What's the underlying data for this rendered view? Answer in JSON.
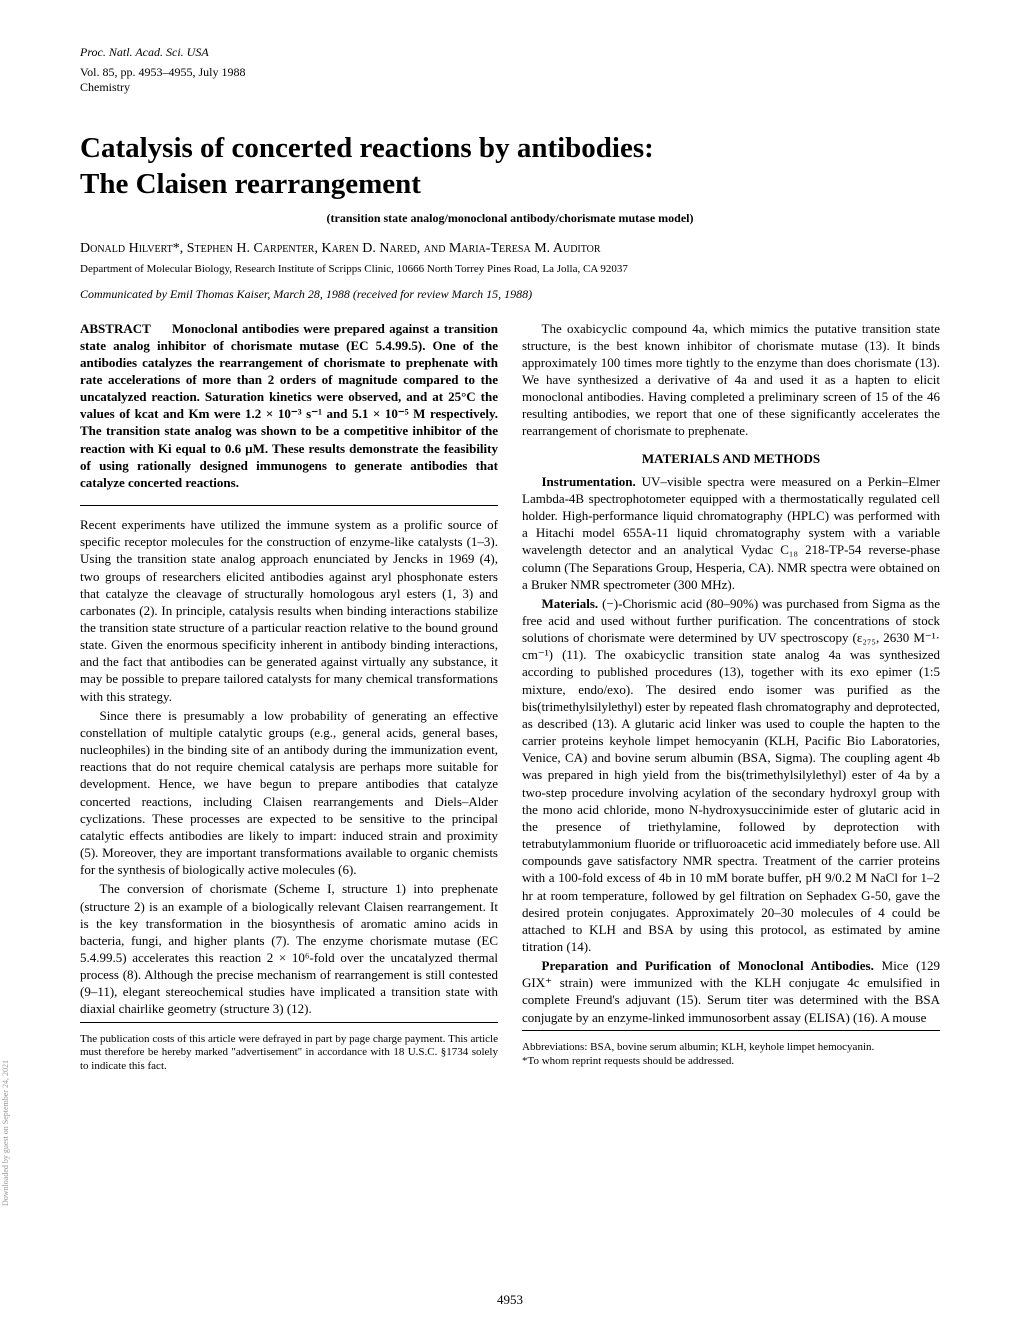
{
  "header": {
    "journal_line": "Proc. Natl. Acad. Sci. USA",
    "volume_line": "Vol. 85, pp. 4953–4955, July 1988",
    "category": "Chemistry"
  },
  "article": {
    "title_line1": "Catalysis of concerted reactions by antibodies:",
    "title_line2": "The Claisen rearrangement",
    "subtitle": "(transition state analog/monoclonal antibody/chorismate mutase model)",
    "authors": "Donald Hilvert*, Stephen H. Carpenter, Karen D. Nared, and Maria-Teresa M. Auditor",
    "affiliation": "Department of Molecular Biology, Research Institute of Scripps Clinic, 10666 North Torrey Pines Road, La Jolla, CA 92037",
    "communicated": "Communicated by Emil Thomas Kaiser, March 28, 1988 (received for review March 15, 1988)"
  },
  "abstract": {
    "label": "ABSTRACT",
    "text": "Monoclonal antibodies were prepared against a transition state analog inhibitor of chorismate mutase (EC 5.4.99.5). One of the antibodies catalyzes the rearrangement of chorismate to prephenate with rate accelerations of more than 2 orders of magnitude compared to the uncatalyzed reaction. Saturation kinetics were observed, and at 25°C the values of kcat and Km were 1.2 × 10⁻³ s⁻¹ and 5.1 × 10⁻⁵ M respectively. The transition state analog was shown to be a competitive inhibitor of the reaction with Ki equal to 0.6 µM. These results demonstrate the feasibility of using rationally designed immunogens to generate antibodies that catalyze concerted reactions."
  },
  "body": {
    "p1": "Recent experiments have utilized the immune system as a prolific source of specific receptor molecules for the construction of enzyme-like catalysts (1–3). Using the transition state analog approach enunciated by Jencks in 1969 (4), two groups of researchers elicited antibodies against aryl phosphonate esters that catalyze the cleavage of structurally homologous aryl esters (1, 3) and carbonates (2). In principle, catalysis results when binding interactions stabilize the transition state structure of a particular reaction relative to the bound ground state. Given the enormous specificity inherent in antibody binding interactions, and the fact that antibodies can be generated against virtually any substance, it may be possible to prepare tailored catalysts for many chemical transformations with this strategy.",
    "p2": "Since there is presumably a low probability of generating an effective constellation of multiple catalytic groups (e.g., general acids, general bases, nucleophiles) in the binding site of an antibody during the immunization event, reactions that do not require chemical catalysis are perhaps more suitable for development. Hence, we have begun to prepare antibodies that catalyze concerted reactions, including Claisen rearrangements and Diels–Alder cyclizations. These processes are expected to be sensitive to the principal catalytic effects antibodies are likely to impart: induced strain and proximity (5). Moreover, they are important transformations available to organic chemists for the synthesis of biologically active molecules (6).",
    "p3": "The conversion of chorismate (Scheme I, structure 1) into prephenate (structure 2) is an example of a biologically relevant Claisen rearrangement. It is the key transformation in the biosynthesis of aromatic amino acids in bacteria, fungi, and higher plants (7). The enzyme chorismate mutase (EC 5.4.99.5) accelerates this reaction 2 × 10⁶-fold over the uncatalyzed thermal process (8). Although the precise mechanism of rearrangement is still contested (9–11), elegant stereochemical studies have implicated a transition state with diaxial chairlike geometry (structure 3) (12).",
    "p4": "The oxabicyclic compound 4a, which mimics the putative transition state structure, is the best known inhibitor of chorismate mutase (13). It binds approximately 100 times more tightly to the enzyme than does chorismate (13). We have synthesized a derivative of 4a and used it as a hapten to elicit monoclonal antibodies. Having completed a preliminary screen of 15 of the 46 resulting antibodies, we report that one of these significantly accelerates the rearrangement of chorismate to prephenate."
  },
  "materials": {
    "heading": "MATERIALS AND METHODS",
    "instrumentation_label": "Instrumentation.",
    "instrumentation": " UV–visible spectra were measured on a Perkin–Elmer Lambda-4B spectrophotometer equipped with a thermostatically regulated cell holder. High-performance liquid chromatography (HPLC) was performed with a Hitachi model 655A-11 liquid chromatography system with a variable wavelength detector and an analytical Vydac C₁₈ 218-TP-54 reverse-phase column (The Separations Group, Hesperia, CA). NMR spectra were obtained on a Bruker NMR spectrometer (300 MHz).",
    "materials_label": "Materials.",
    "materials_text": " (−)-Chorismic acid (80–90%) was purchased from Sigma as the free acid and used without further purification. The concentrations of stock solutions of chorismate were determined by UV spectroscopy (ε₂₇₅, 2630 M⁻¹· cm⁻¹) (11). The oxabicyclic transition state analog 4a was synthesized according to published procedures (13), together with its exo epimer (1:5 mixture, endo/exo). The desired endo isomer was purified as the bis(trimethylsilylethyl) ester by repeated flash chromatography and deprotected, as described (13). A glutaric acid linker was used to couple the hapten to the carrier proteins keyhole limpet hemocyanin (KLH, Pacific Bio Laboratories, Venice, CA) and bovine serum albumin (BSA, Sigma). The coupling agent 4b was prepared in high yield from the bis(trimethylsilylethyl) ester of 4a by a two-step procedure involving acylation of the secondary hydroxyl group with the mono acid chloride, mono N-hydroxysuccinimide ester of glutaric acid in the presence of triethylamine, followed by deprotection with tetrabutylammonium fluoride or trifluoroacetic acid immediately before use. All compounds gave satisfactory NMR spectra. Treatment of the carrier proteins with a 100-fold excess of 4b in 10 mM borate buffer, pH 9/0.2 M NaCl for 1–2 hr at room temperature, followed by gel filtration on Sephadex G-50, gave the desired protein conjugates. Approximately 20–30 molecules of 4 could be attached to KLH and BSA by using this protocol, as estimated by amine titration (14).",
    "prep_label": "Preparation and Purification of Monoclonal Antibodies.",
    "prep_text": " Mice (129 GIX⁺ strain) were immunized with the KLH conjugate 4c emulsified in complete Freund's adjuvant (15). Serum titer was determined with the BSA conjugate by an enzyme-linked immunosorbent assay (ELISA) (16). A mouse"
  },
  "footer": {
    "pub_costs": "The publication costs of this article were defrayed in part by page charge payment. This article must therefore be hereby marked \"advertisement\" in accordance with 18 U.S.C. §1734 solely to indicate this fact.",
    "abbreviations": "Abbreviations: BSA, bovine serum albumin; KLH, keyhole limpet hemocyanin.",
    "reprint_note": "*To whom reprint requests should be addressed.",
    "page_number": "4953",
    "watermark": "Downloaded by guest on September 24, 2021"
  }
}
